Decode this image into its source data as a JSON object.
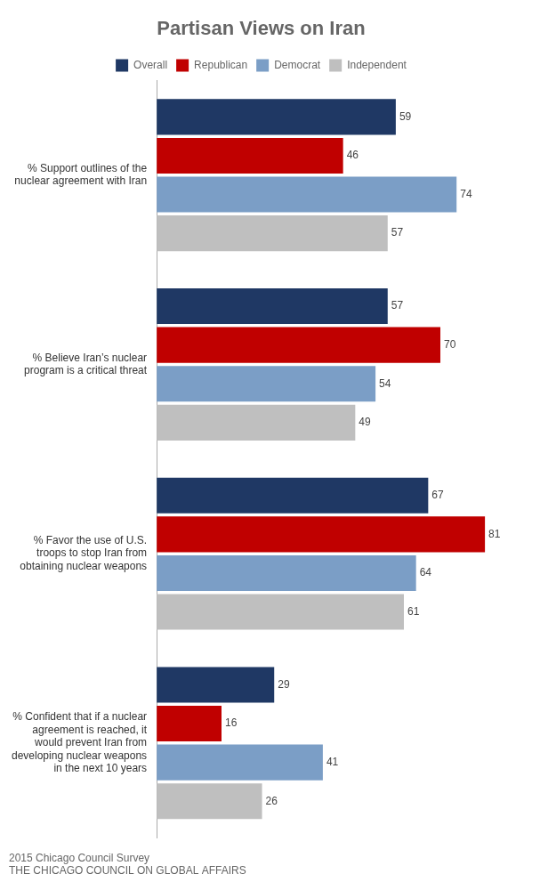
{
  "chart_data": {
    "type": "bar",
    "orientation": "horizontal",
    "title": "Partisan Views on Iran",
    "categories": [
      "% Support outlines of the\nnuclear agreement with Iran",
      "% Believe Iran’s nuclear\nprogram is a critical threat",
      "% Favor the use of U.S.\ntroops to stop Iran from\nobtaining nuclear weapons",
      "% Confident that if a nuclear\nagreement is reached, it\nwould prevent Iran from\ndeveloping nuclear weapons\nin the next 10 years"
    ],
    "series": [
      {
        "name": "Overall",
        "color": "#1F3864",
        "values": [
          59,
          57,
          67,
          29
        ]
      },
      {
        "name": "Republican",
        "color": "#C00000",
        "values": [
          46,
          70,
          81,
          16
        ]
      },
      {
        "name": "Democrat",
        "color": "#7B9EC6",
        "values": [
          74,
          54,
          64,
          41
        ]
      },
      {
        "name": "Independent",
        "color": "#BFBFBF",
        "values": [
          57,
          49,
          61,
          26
        ]
      }
    ],
    "xlim": [
      0,
      88
    ],
    "grid": false,
    "legend": "top",
    "data_labels": true,
    "tick_labels": "y",
    "annotations": [
      "2015 Chicago Council Survey",
      "THE CHICAGO COUNCIL ON GLOBAL AFFAIRS"
    ]
  }
}
